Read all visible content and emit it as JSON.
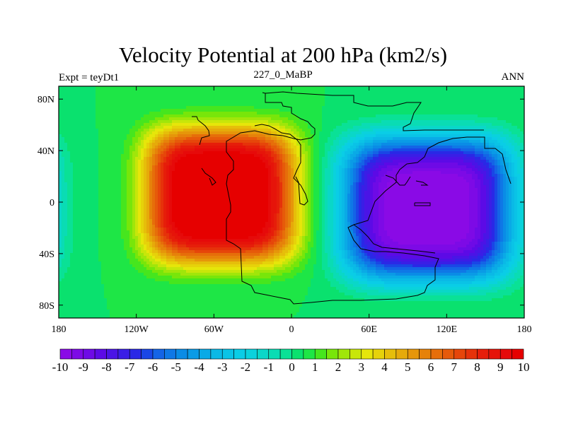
{
  "header": {
    "title": "Velocity Potential at 200 hPa (km2/s)",
    "left": "Expt = teyDt1",
    "center": "227_0_MaBP",
    "right": "ANN"
  },
  "chart_data": {
    "type": "heatmap",
    "title": "Velocity Potential at 200 hPa (km2/s)",
    "units": "km2/s",
    "lon_range": [
      -180,
      180
    ],
    "lat_range": [
      -90,
      90
    ],
    "x_ticks": [
      {
        "value": -180,
        "label": "180"
      },
      {
        "value": -120,
        "label": "120W"
      },
      {
        "value": -60,
        "label": "60W"
      },
      {
        "value": 0,
        "label": "0"
      },
      {
        "value": 60,
        "label": "60E"
      },
      {
        "value": 120,
        "label": "120E"
      },
      {
        "value": 180,
        "label": "180"
      }
    ],
    "y_ticks": [
      {
        "value": 80,
        "label": "80N"
      },
      {
        "value": 40,
        "label": "40N"
      },
      {
        "value": 0,
        "label": "0"
      },
      {
        "value": -40,
        "label": "40S"
      },
      {
        "value": -80,
        "label": "80S"
      }
    ],
    "centers": [
      {
        "name": "maximum",
        "lon": -55,
        "lat": 5,
        "value": 10.5
      },
      {
        "name": "minimum",
        "lon": 105,
        "lat": -5,
        "value": -10.5
      }
    ],
    "colorbar": {
      "min": -10.5,
      "max": 10.5,
      "step": 0.5,
      "labels": [
        "-10",
        "-9",
        "-8",
        "-7",
        "-6",
        "-5",
        "-4",
        "-3",
        "-2",
        "-1",
        "0",
        "1",
        "2",
        "3",
        "4",
        "5",
        "6",
        "7",
        "8",
        "9",
        "10"
      ],
      "colors": [
        "#8a0ae6",
        "#7d0ae6",
        "#6e0ae6",
        "#5c0ae6",
        "#4a14e6",
        "#3a1ee6",
        "#2a28e6",
        "#1a46e6",
        "#1464e6",
        "#0f78e6",
        "#0a8ce6",
        "#0a9be6",
        "#0aaae6",
        "#0ab9e6",
        "#0ac3e6",
        "#0acde6",
        "#0ad2dc",
        "#0ad7c8",
        "#0adcb4",
        "#0ae196",
        "#0ae16e",
        "#1ee646",
        "#46e61e",
        "#78e60a",
        "#a0e60a",
        "#c8e60a",
        "#e6e60a",
        "#e6d20a",
        "#e6be0a",
        "#e6aa0a",
        "#e6960a",
        "#e6820a",
        "#e66e0a",
        "#e65a0a",
        "#e6460a",
        "#e6320a",
        "#e61e0a",
        "#e6140a",
        "#e60a0a",
        "#e60000"
      ]
    }
  }
}
